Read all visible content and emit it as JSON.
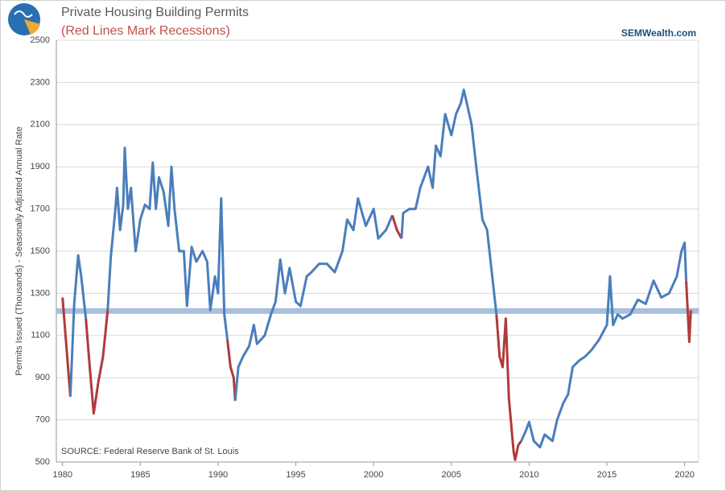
{
  "chart_data": {
    "type": "line",
    "title": "Private Housing Building Permits",
    "subtitle": "(Red Lines Mark Recessions)",
    "brand": "SEMWealth.com",
    "y_label": "Permits Issued (Thousands) - Seasonally Adjusted Annual Rate",
    "annotation": "SOURCE:   Federal Reserve Bank of St. Louis",
    "x": [
      1980.0,
      1980.3,
      1980.5,
      1980.75,
      1981.0,
      1981.2,
      1981.5,
      1981.75,
      1982.0,
      1982.3,
      1982.6,
      1982.9,
      1983.1,
      1983.4,
      1983.5,
      1983.7,
      1983.9,
      1984.0,
      1984.2,
      1984.4,
      1984.7,
      1985.0,
      1985.3,
      1985.6,
      1985.8,
      1986.0,
      1986.2,
      1986.5,
      1986.8,
      1987.0,
      1987.2,
      1987.5,
      1987.8,
      1988.0,
      1988.3,
      1988.6,
      1989.0,
      1989.3,
      1989.5,
      1989.8,
      1990.0,
      1990.2,
      1990.4,
      1990.6,
      1990.8,
      1991.0,
      1991.1,
      1991.3,
      1991.6,
      1992.0,
      1992.3,
      1992.5,
      1993.0,
      1993.4,
      1993.7,
      1994.0,
      1994.3,
      1994.6,
      1995.0,
      1995.3,
      1995.7,
      1996.0,
      1996.5,
      1997.0,
      1997.5,
      1998.0,
      1998.3,
      1998.7,
      1999.0,
      1999.5,
      2000.0,
      2000.3,
      2000.8,
      2001.2,
      2001.5,
      2001.8,
      2001.9,
      2002.3,
      2002.7,
      2003.0,
      2003.5,
      2003.8,
      2004.0,
      2004.3,
      2004.6,
      2005.0,
      2005.3,
      2005.6,
      2005.8,
      2006.0,
      2006.3,
      2006.6,
      2007.0,
      2007.3,
      2007.6,
      2007.9,
      2008.1,
      2008.3,
      2008.5,
      2008.7,
      2009.0,
      2009.1,
      2009.3,
      2009.5,
      2009.8,
      2010.0,
      2010.3,
      2010.7,
      2011.0,
      2011.5,
      2011.8,
      2012.2,
      2012.5,
      2012.8,
      2013.2,
      2013.6,
      2014.0,
      2014.5,
      2015.0,
      2015.2,
      2015.4,
      2015.7,
      2016.0,
      2016.5,
      2017.0,
      2017.5,
      2018.0,
      2018.5,
      2019.0,
      2019.5,
      2019.8,
      2020.0,
      2020.1,
      2020.3,
      2020.4
    ],
    "values": [
      1280,
      1000,
      810,
      1250,
      1480,
      1380,
      1180,
      950,
      730,
      880,
      1000,
      1220,
      1470,
      1700,
      1800,
      1600,
      1720,
      1990,
      1700,
      1800,
      1500,
      1650,
      1720,
      1700,
      1920,
      1700,
      1850,
      1780,
      1620,
      1900,
      1700,
      1500,
      1500,
      1240,
      1520,
      1450,
      1500,
      1450,
      1220,
      1380,
      1300,
      1750,
      1200,
      1080,
      950,
      900,
      790,
      950,
      1000,
      1050,
      1150,
      1060,
      1100,
      1200,
      1260,
      1460,
      1300,
      1420,
      1260,
      1240,
      1380,
      1400,
      1440,
      1440,
      1400,
      1500,
      1650,
      1600,
      1750,
      1620,
      1700,
      1560,
      1600,
      1670,
      1600,
      1560,
      1680,
      1700,
      1700,
      1800,
      1900,
      1800,
      2000,
      1950,
      2150,
      2050,
      2150,
      2200,
      2265,
      2200,
      2100,
      1900,
      1650,
      1600,
      1400,
      1200,
      1000,
      950,
      1180,
      800,
      550,
      510,
      580,
      600,
      650,
      690,
      600,
      570,
      630,
      600,
      700,
      780,
      820,
      950,
      980,
      1000,
      1030,
      1080,
      1150,
      1380,
      1150,
      1200,
      1180,
      1200,
      1270,
      1250,
      1360,
      1280,
      1300,
      1380,
      1500,
      1540,
      1360,
      1070,
      1220
    ],
    "color": "#4a7ebb",
    "recession_color": "#b03a3a",
    "recessions": [
      [
        1980.0,
        1980.5
      ],
      [
        1981.5,
        1982.9
      ],
      [
        1990.6,
        1991.1
      ],
      [
        2001.2,
        2001.8
      ],
      [
        2007.9,
        2009.5
      ],
      [
        2020.1,
        2020.4
      ]
    ],
    "reference_line": 1216,
    "reference_color": "#a8c0dc",
    "xlim": [
      1979.6,
      2020.9
    ],
    "xticks": [
      1980,
      1985,
      1990,
      1995,
      2000,
      2005,
      2010,
      2015,
      2020
    ],
    "ylim": [
      500,
      2500
    ],
    "yticks": [
      500,
      700,
      900,
      1100,
      1300,
      1500,
      1700,
      1900,
      2100,
      2300,
      2500
    ],
    "grid": true
  }
}
